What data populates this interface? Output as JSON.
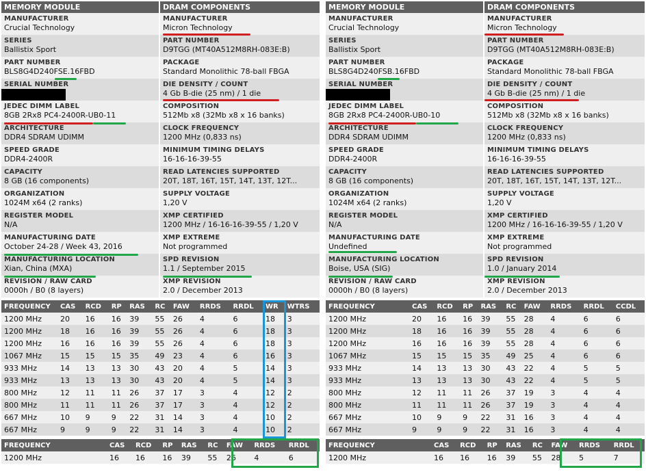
{
  "left": {
    "header_module": "MEMORY MODULE",
    "header_dram": "DRAM COMPONENTS",
    "module_rows": [
      {
        "label": "MANUFACTURER",
        "value": "Crucial Technology"
      },
      {
        "label": "SERIES",
        "value": "Ballistix Sport"
      },
      {
        "label": "PART NUMBER",
        "value": "BLS8G4D240FSE.16FBD"
      },
      {
        "label": "SERIAL NUMBER",
        "value": ""
      },
      {
        "label": "JEDEC DIMM LABEL",
        "value": "8GB 2Rx8 PC4-2400R-UB0-11"
      },
      {
        "label": "ARCHITECTURE",
        "value": "DDR4 SDRAM UDIMM"
      },
      {
        "label": "SPEED GRADE",
        "value": "DDR4-2400R"
      },
      {
        "label": "CAPACITY",
        "value": "8 GB (16 components)"
      },
      {
        "label": "ORGANIZATION",
        "value": "1024M x64 (2 ranks)"
      },
      {
        "label": "REGISTER MODEL",
        "value": "N/A"
      },
      {
        "label": "MANUFACTURING DATE",
        "value": "October 24-28 / Week 43, 2016"
      },
      {
        "label": "MANUFACTURING LOCATION",
        "value": "Xian, China (MXA)"
      },
      {
        "label": "REVISION / RAW CARD",
        "value": "0000h / B0 (8 layers)"
      }
    ],
    "dram_rows": [
      {
        "label": "MANUFACTURER",
        "value": "Micron Technology"
      },
      {
        "label": "PART NUMBER",
        "value": "D9TGG (MT40A512M8RH-083E:B)"
      },
      {
        "label": "PACKAGE",
        "value": "Standard Monolithic 78-ball FBGA"
      },
      {
        "label": "DIE DENSITY / COUNT",
        "value": "4 Gb B-die (25 nm) / 1 die"
      },
      {
        "label": "COMPOSITION",
        "value": "512Mb x8 (32Mb x8 x 16 banks)"
      },
      {
        "label": "CLOCK FREQUENCY",
        "value": "1200 MHz (0,833 ns)"
      },
      {
        "label": "MINIMUM TIMING DELAYS",
        "value": "16-16-16-39-55"
      },
      {
        "label": "READ LATENCIES SUPPORTED",
        "value": "20T, 18T, 16T, 15T, 14T, 13T, 12T..."
      },
      {
        "label": "SUPPLY VOLTAGE",
        "value": "1,20 V"
      },
      {
        "label": "XMP CERTIFIED",
        "value": "1200 MHz / 16-16-16-39-55 / 1,20 V"
      },
      {
        "label": "XMP EXTREME",
        "value": "Not programmed"
      },
      {
        "label": "SPD REVISION",
        "value": "1.1 / September 2015"
      },
      {
        "label": "XMP REVISION",
        "value": "2.0 / December 2013"
      }
    ],
    "freq_headers": [
      "FREQUENCY",
      "CAS",
      "RCD",
      "RP",
      "RAS",
      "RC",
      "FAW",
      "RRDS",
      "RRDL",
      "WR",
      "WTRS"
    ],
    "freq_rows": [
      [
        "1200 MHz",
        "20",
        "16",
        "16",
        "39",
        "55",
        "26",
        "4",
        "6",
        "18",
        "3"
      ],
      [
        "1200 MHz",
        "18",
        "16",
        "16",
        "39",
        "55",
        "26",
        "4",
        "6",
        "18",
        "3"
      ],
      [
        "1200 MHz",
        "16",
        "16",
        "16",
        "39",
        "55",
        "26",
        "4",
        "6",
        "18",
        "3"
      ],
      [
        "1067 MHz",
        "15",
        "15",
        "15",
        "35",
        "49",
        "23",
        "4",
        "6",
        "16",
        "3"
      ],
      [
        "933 MHz",
        "14",
        "13",
        "13",
        "30",
        "43",
        "20",
        "4",
        "5",
        "14",
        "3"
      ],
      [
        "933 MHz",
        "13",
        "13",
        "13",
        "30",
        "43",
        "20",
        "4",
        "5",
        "14",
        "3"
      ],
      [
        "800 MHz",
        "12",
        "11",
        "11",
        "26",
        "37",
        "17",
        "3",
        "4",
        "12",
        "2"
      ],
      [
        "800 MHz",
        "11",
        "11",
        "11",
        "26",
        "37",
        "17",
        "3",
        "4",
        "12",
        "2"
      ],
      [
        "667 MHz",
        "10",
        "9",
        "9",
        "22",
        "31",
        "14",
        "3",
        "4",
        "10",
        "2"
      ],
      [
        "667 MHz",
        "9",
        "9",
        "9",
        "22",
        "31",
        "14",
        "3",
        "4",
        "10",
        "2"
      ]
    ],
    "xmp_headers": [
      "FREQUENCY",
      "CAS",
      "RCD",
      "RP",
      "RAS",
      "RC",
      "FAW",
      "RRDS",
      "RRDL"
    ],
    "xmp_row": [
      "1200 MHz",
      "16",
      "16",
      "16",
      "39",
      "55",
      "26",
      "4",
      "6"
    ]
  },
  "right": {
    "header_module": "MEMORY MODULE",
    "header_dram": "DRAM COMPONENTS",
    "module_rows": [
      {
        "label": "MANUFACTURER",
        "value": "Crucial Technology"
      },
      {
        "label": "SERIES",
        "value": "Ballistix Sport"
      },
      {
        "label": "PART NUMBER",
        "value": "BLS8G4D240FSB.16FBD"
      },
      {
        "label": "SERIAL NUMBER",
        "value": ""
      },
      {
        "label": "JEDEC DIMM LABEL",
        "value": "8GB 2Rx8 PC4-2400R-UB0-10"
      },
      {
        "label": "ARCHITECTURE",
        "value": "DDR4 SDRAM UDIMM"
      },
      {
        "label": "SPEED GRADE",
        "value": "DDR4-2400R"
      },
      {
        "label": "CAPACITY",
        "value": "8 GB (16 components)"
      },
      {
        "label": "ORGANIZATION",
        "value": "1024M x64 (2 ranks)"
      },
      {
        "label": "REGISTER MODEL",
        "value": "N/A"
      },
      {
        "label": "MANUFACTURING DATE",
        "value": "Undefined"
      },
      {
        "label": "MANUFACTURING LOCATION",
        "value": "Boise, USA (SIG)"
      },
      {
        "label": "REVISION / RAW CARD",
        "value": "0000h / B0 (8 layers)"
      }
    ],
    "dram_rows": [
      {
        "label": "MANUFACTURER",
        "value": "Micron Technology"
      },
      {
        "label": "PART NUMBER",
        "value": "D9TGG (MT40A512M8RH-083E:B)"
      },
      {
        "label": "PACKAGE",
        "value": "Standard Monolithic 78-ball FBGA"
      },
      {
        "label": "DIE DENSITY / COUNT",
        "value": "4 Gb B-die (25 nm) / 1 die"
      },
      {
        "label": "COMPOSITION",
        "value": "512Mb x8 (32Mb x8 x 16 banks)"
      },
      {
        "label": "CLOCK FREQUENCY",
        "value": "1200 MHz (0,833 ns)"
      },
      {
        "label": "MINIMUM TIMING DELAYS",
        "value": "16-16-16-39-55"
      },
      {
        "label": "READ LATENCIES SUPPORTED",
        "value": "20T, 18T, 16T, 15T, 14T, 13T, 12T..."
      },
      {
        "label": "SUPPLY VOLTAGE",
        "value": "1,20 V"
      },
      {
        "label": "XMP CERTIFIED",
        "value": "1200 MHz / 16-16-16-39-55 / 1,20 V"
      },
      {
        "label": "XMP EXTREME",
        "value": "Not programmed"
      },
      {
        "label": "SPD REVISION",
        "value": "1.0 / January 2014"
      },
      {
        "label": "XMP REVISION",
        "value": "2.0 / December 2013"
      }
    ],
    "freq_headers": [
      "FREQUENCY",
      "CAS",
      "RCD",
      "RP",
      "RAS",
      "RC",
      "FAW",
      "RRDS",
      "RRDL",
      "CCDL"
    ],
    "freq_rows": [
      [
        "1200 MHz",
        "20",
        "16",
        "16",
        "39",
        "55",
        "28",
        "4",
        "6",
        "6"
      ],
      [
        "1200 MHz",
        "18",
        "16",
        "16",
        "39",
        "55",
        "28",
        "4",
        "6",
        "6"
      ],
      [
        "1200 MHz",
        "16",
        "16",
        "16",
        "39",
        "55",
        "28",
        "4",
        "6",
        "6"
      ],
      [
        "1067 MHz",
        "15",
        "15",
        "15",
        "35",
        "49",
        "25",
        "4",
        "6",
        "6"
      ],
      [
        "933 MHz",
        "14",
        "13",
        "13",
        "30",
        "43",
        "22",
        "4",
        "5",
        "5"
      ],
      [
        "933 MHz",
        "13",
        "13",
        "13",
        "30",
        "43",
        "22",
        "4",
        "5",
        "5"
      ],
      [
        "800 MHz",
        "12",
        "11",
        "11",
        "26",
        "37",
        "19",
        "3",
        "4",
        "4"
      ],
      [
        "800 MHz",
        "11",
        "11",
        "11",
        "26",
        "37",
        "19",
        "3",
        "4",
        "4"
      ],
      [
        "667 MHz",
        "10",
        "9",
        "9",
        "22",
        "31",
        "16",
        "3",
        "4",
        "4"
      ],
      [
        "667 MHz",
        "9",
        "9",
        "9",
        "22",
        "31",
        "16",
        "3",
        "4",
        "4"
      ]
    ],
    "xmp_headers": [
      "FREQUENCY",
      "CAS",
      "RCD",
      "RP",
      "RAS",
      "RC",
      "FAW",
      "RRDS",
      "RRDL"
    ],
    "xmp_row": [
      "1200 MHz",
      "16",
      "16",
      "16",
      "39",
      "55",
      "28",
      "5",
      "7"
    ]
  }
}
